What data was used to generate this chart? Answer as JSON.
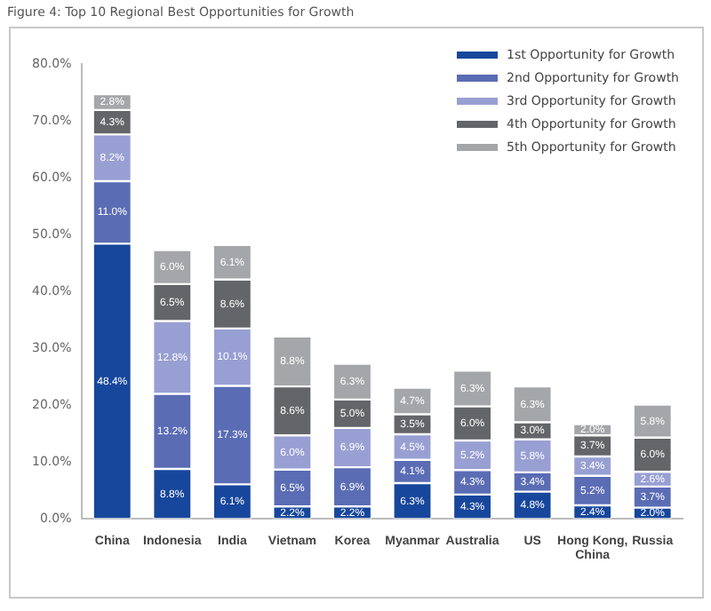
{
  "chart_data": {
    "type": "bar",
    "title": "Figure 4: Top 10 Regional Best Opportunities for Growth",
    "stacked": true,
    "legend": "top right",
    "grid": false,
    "categories": [
      "China",
      "Indonesia",
      "India",
      "Vietnam",
      "Korea",
      "Myanmar",
      "Australia",
      "US",
      "Hong Kong, China",
      "Russia"
    ],
    "ylim": [
      0,
      80
    ],
    "yticks": [
      {
        "value": 0,
        "label": "0.0%"
      },
      {
        "value": 10,
        "label": "10.0%"
      },
      {
        "value": 20,
        "label": "20.0%"
      },
      {
        "value": 30,
        "label": "30.0%"
      },
      {
        "value": 40,
        "label": "40.0%"
      },
      {
        "value": 50,
        "label": "50.0%"
      },
      {
        "value": 60,
        "label": "60.0%"
      },
      {
        "value": 70,
        "label": "70.0%"
      },
      {
        "value": 80,
        "label": "80.0%"
      }
    ],
    "series": [
      {
        "name": "1st Opportunity for Growth",
        "color": "#17479c",
        "values": [
          48.4,
          8.8,
          6.1,
          2.2,
          2.2,
          6.3,
          4.3,
          4.8,
          2.4,
          2.0
        ],
        "value_labels": [
          "48.4%",
          "8.8%",
          "6.1%",
          "2.2%",
          "2.2%",
          "6.3%",
          "4.3%",
          "4.8%",
          "2.4%",
          "2.0%"
        ]
      },
      {
        "name": "2nd Opportunity for Growth",
        "color": "#5a6cb4",
        "values": [
          11.0,
          13.2,
          17.3,
          6.5,
          6.9,
          4.1,
          4.3,
          3.4,
          5.2,
          3.7
        ],
        "value_labels": [
          "11.0%",
          "13.2%",
          "17.3%",
          "6.5%",
          "6.9%",
          "4.1%",
          "4.3%",
          "3.4%",
          "5.2%",
          "3.7%"
        ]
      },
      {
        "name": "3rd Opportunity for Growth",
        "color": "#989fd2",
        "values": [
          8.2,
          12.8,
          10.1,
          6.0,
          6.9,
          4.5,
          5.2,
          5.8,
          3.4,
          2.6
        ],
        "value_labels": [
          "8.2%",
          "12.8%",
          "10.1%",
          "6.0%",
          "6.9%",
          "4.5%",
          "5.2%",
          "5.8%",
          "3.4%",
          "2.6%"
        ]
      },
      {
        "name": "4th Opportunity for Growth",
        "color": "#646568",
        "values": [
          4.3,
          6.5,
          8.6,
          8.6,
          5.0,
          3.5,
          6.0,
          3.0,
          3.7,
          6.0
        ],
        "value_labels": [
          "4.3%",
          "6.5%",
          "8.6%",
          "8.6%",
          "5.0%",
          "3.5%",
          "6.0%",
          "3.0%",
          "3.7%",
          "6.0%"
        ]
      },
      {
        "name": "5th Opportunity for Growth",
        "color": "#a5a6a9",
        "values": [
          2.8,
          6.0,
          6.1,
          8.8,
          6.3,
          4.7,
          6.3,
          6.3,
          2.0,
          5.8
        ],
        "value_labels": [
          "2.8%",
          "6.0%",
          "6.1%",
          "8.8%",
          "6.3%",
          "4.7%",
          "6.3%",
          "6.3%",
          "2.0%",
          "5.8%"
        ]
      }
    ]
  }
}
